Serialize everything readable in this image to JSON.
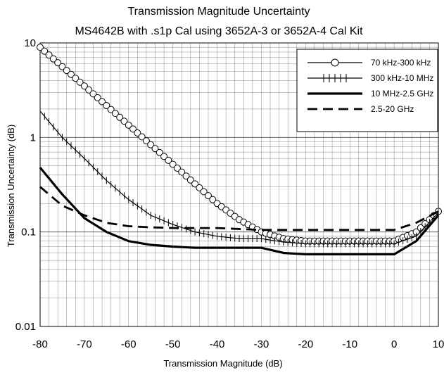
{
  "chart_data": {
    "type": "line",
    "title": "Transmission Magnitude Uncertainty",
    "subtitle": "MS4642B with .s1p Cal using 3652A-3 or 3652A-4 Cal Kit",
    "xlabel": "Transmission Magnitude (dB)",
    "ylabel": "Transmission Uncertainty (dB)",
    "x_scale": "linear",
    "y_scale": "log",
    "xlim": [
      -80,
      10
    ],
    "ylim": [
      0.01,
      10
    ],
    "x_ticks": [
      -80,
      -70,
      -60,
      -50,
      -40,
      -30,
      -20,
      -10,
      0,
      10
    ],
    "x_tick_labels": [
      "-80",
      "-70",
      "-60",
      "-50",
      "-40",
      "-30",
      "-20",
      "-10",
      "0",
      "10"
    ],
    "y_ticks": [
      0.01,
      0.1,
      1,
      10
    ],
    "y_tick_labels": [
      "0.01",
      "0.1",
      "1",
      "10"
    ],
    "grid": true,
    "legend_position": "top-right",
    "series": [
      {
        "name": "70 kHz-300 kHz",
        "style": "circle-markers",
        "color": "#000000",
        "x": [
          -80,
          -70,
          -60,
          -50,
          -40,
          -35,
          -30,
          -25,
          -20,
          -10,
          0,
          5,
          10
        ],
        "y": [
          9,
          3.5,
          1.35,
          0.52,
          0.2,
          0.135,
          0.1,
          0.085,
          0.08,
          0.08,
          0.08,
          0.1,
          0.165
        ]
      },
      {
        "name": "300 kHz-10 MHz",
        "style": "plus-markers",
        "color": "#000000",
        "x": [
          -80,
          -75,
          -70,
          -65,
          -60,
          -55,
          -50,
          -45,
          -40,
          -35,
          -30,
          -25,
          -20,
          -10,
          0,
          5,
          10
        ],
        "y": [
          1.9,
          1.0,
          0.6,
          0.35,
          0.22,
          0.15,
          0.12,
          0.1,
          0.09,
          0.085,
          0.085,
          0.078,
          0.075,
          0.075,
          0.075,
          0.09,
          0.16
        ]
      },
      {
        "name": "10 MHz-2.5 GHz",
        "style": "solid-thick",
        "color": "#000000",
        "x": [
          -80,
          -75,
          -70,
          -65,
          -60,
          -55,
          -50,
          -45,
          -40,
          -30,
          -25,
          -20,
          -10,
          0,
          5,
          10
        ],
        "y": [
          0.48,
          0.25,
          0.14,
          0.1,
          0.08,
          0.073,
          0.07,
          0.068,
          0.068,
          0.068,
          0.06,
          0.058,
          0.058,
          0.058,
          0.08,
          0.15
        ]
      },
      {
        "name": "2.5-20 GHz",
        "style": "dashed-thick",
        "color": "#000000",
        "x": [
          -80,
          -75,
          -70,
          -65,
          -60,
          -55,
          -50,
          -40,
          -30,
          -20,
          -10,
          0,
          5,
          10
        ],
        "y": [
          0.3,
          0.19,
          0.15,
          0.125,
          0.115,
          0.112,
          0.11,
          0.11,
          0.105,
          0.105,
          0.105,
          0.105,
          0.125,
          0.165
        ]
      }
    ]
  }
}
